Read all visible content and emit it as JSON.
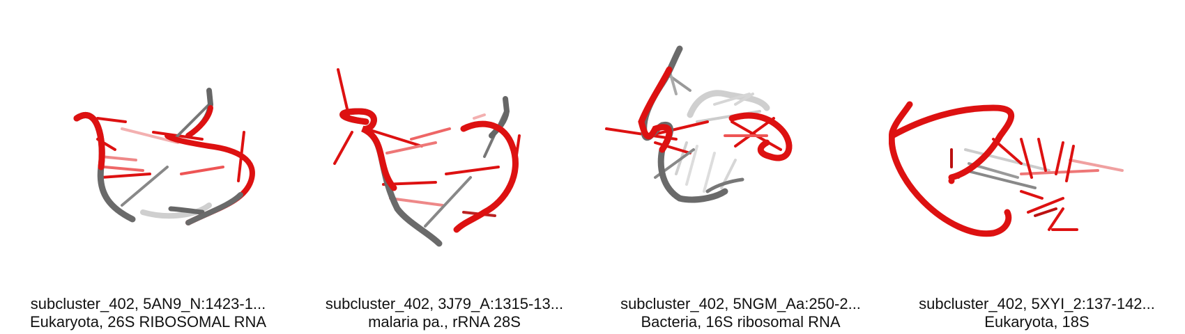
{
  "colors": {
    "red": "#dd1111",
    "gray": "#707070",
    "light_gray": "#c8c8c8"
  },
  "panels": [
    {
      "title": "subcluster_402, 5AN9_N:1423-1...",
      "subtitle": "Eukaryota, 26S RIBOSOMAL RNA"
    },
    {
      "title": "subcluster_402, 3J79_A:1315-13...",
      "subtitle": "malaria pa., rRNA 28S"
    },
    {
      "title": "subcluster_402, 5NGM_Aa:250-2...",
      "subtitle": "Bacteria, 16S ribosomal RNA"
    },
    {
      "title": "subcluster_402, 5XYI_2:137-142...",
      "subtitle": "Eukaryota, 18S"
    }
  ]
}
